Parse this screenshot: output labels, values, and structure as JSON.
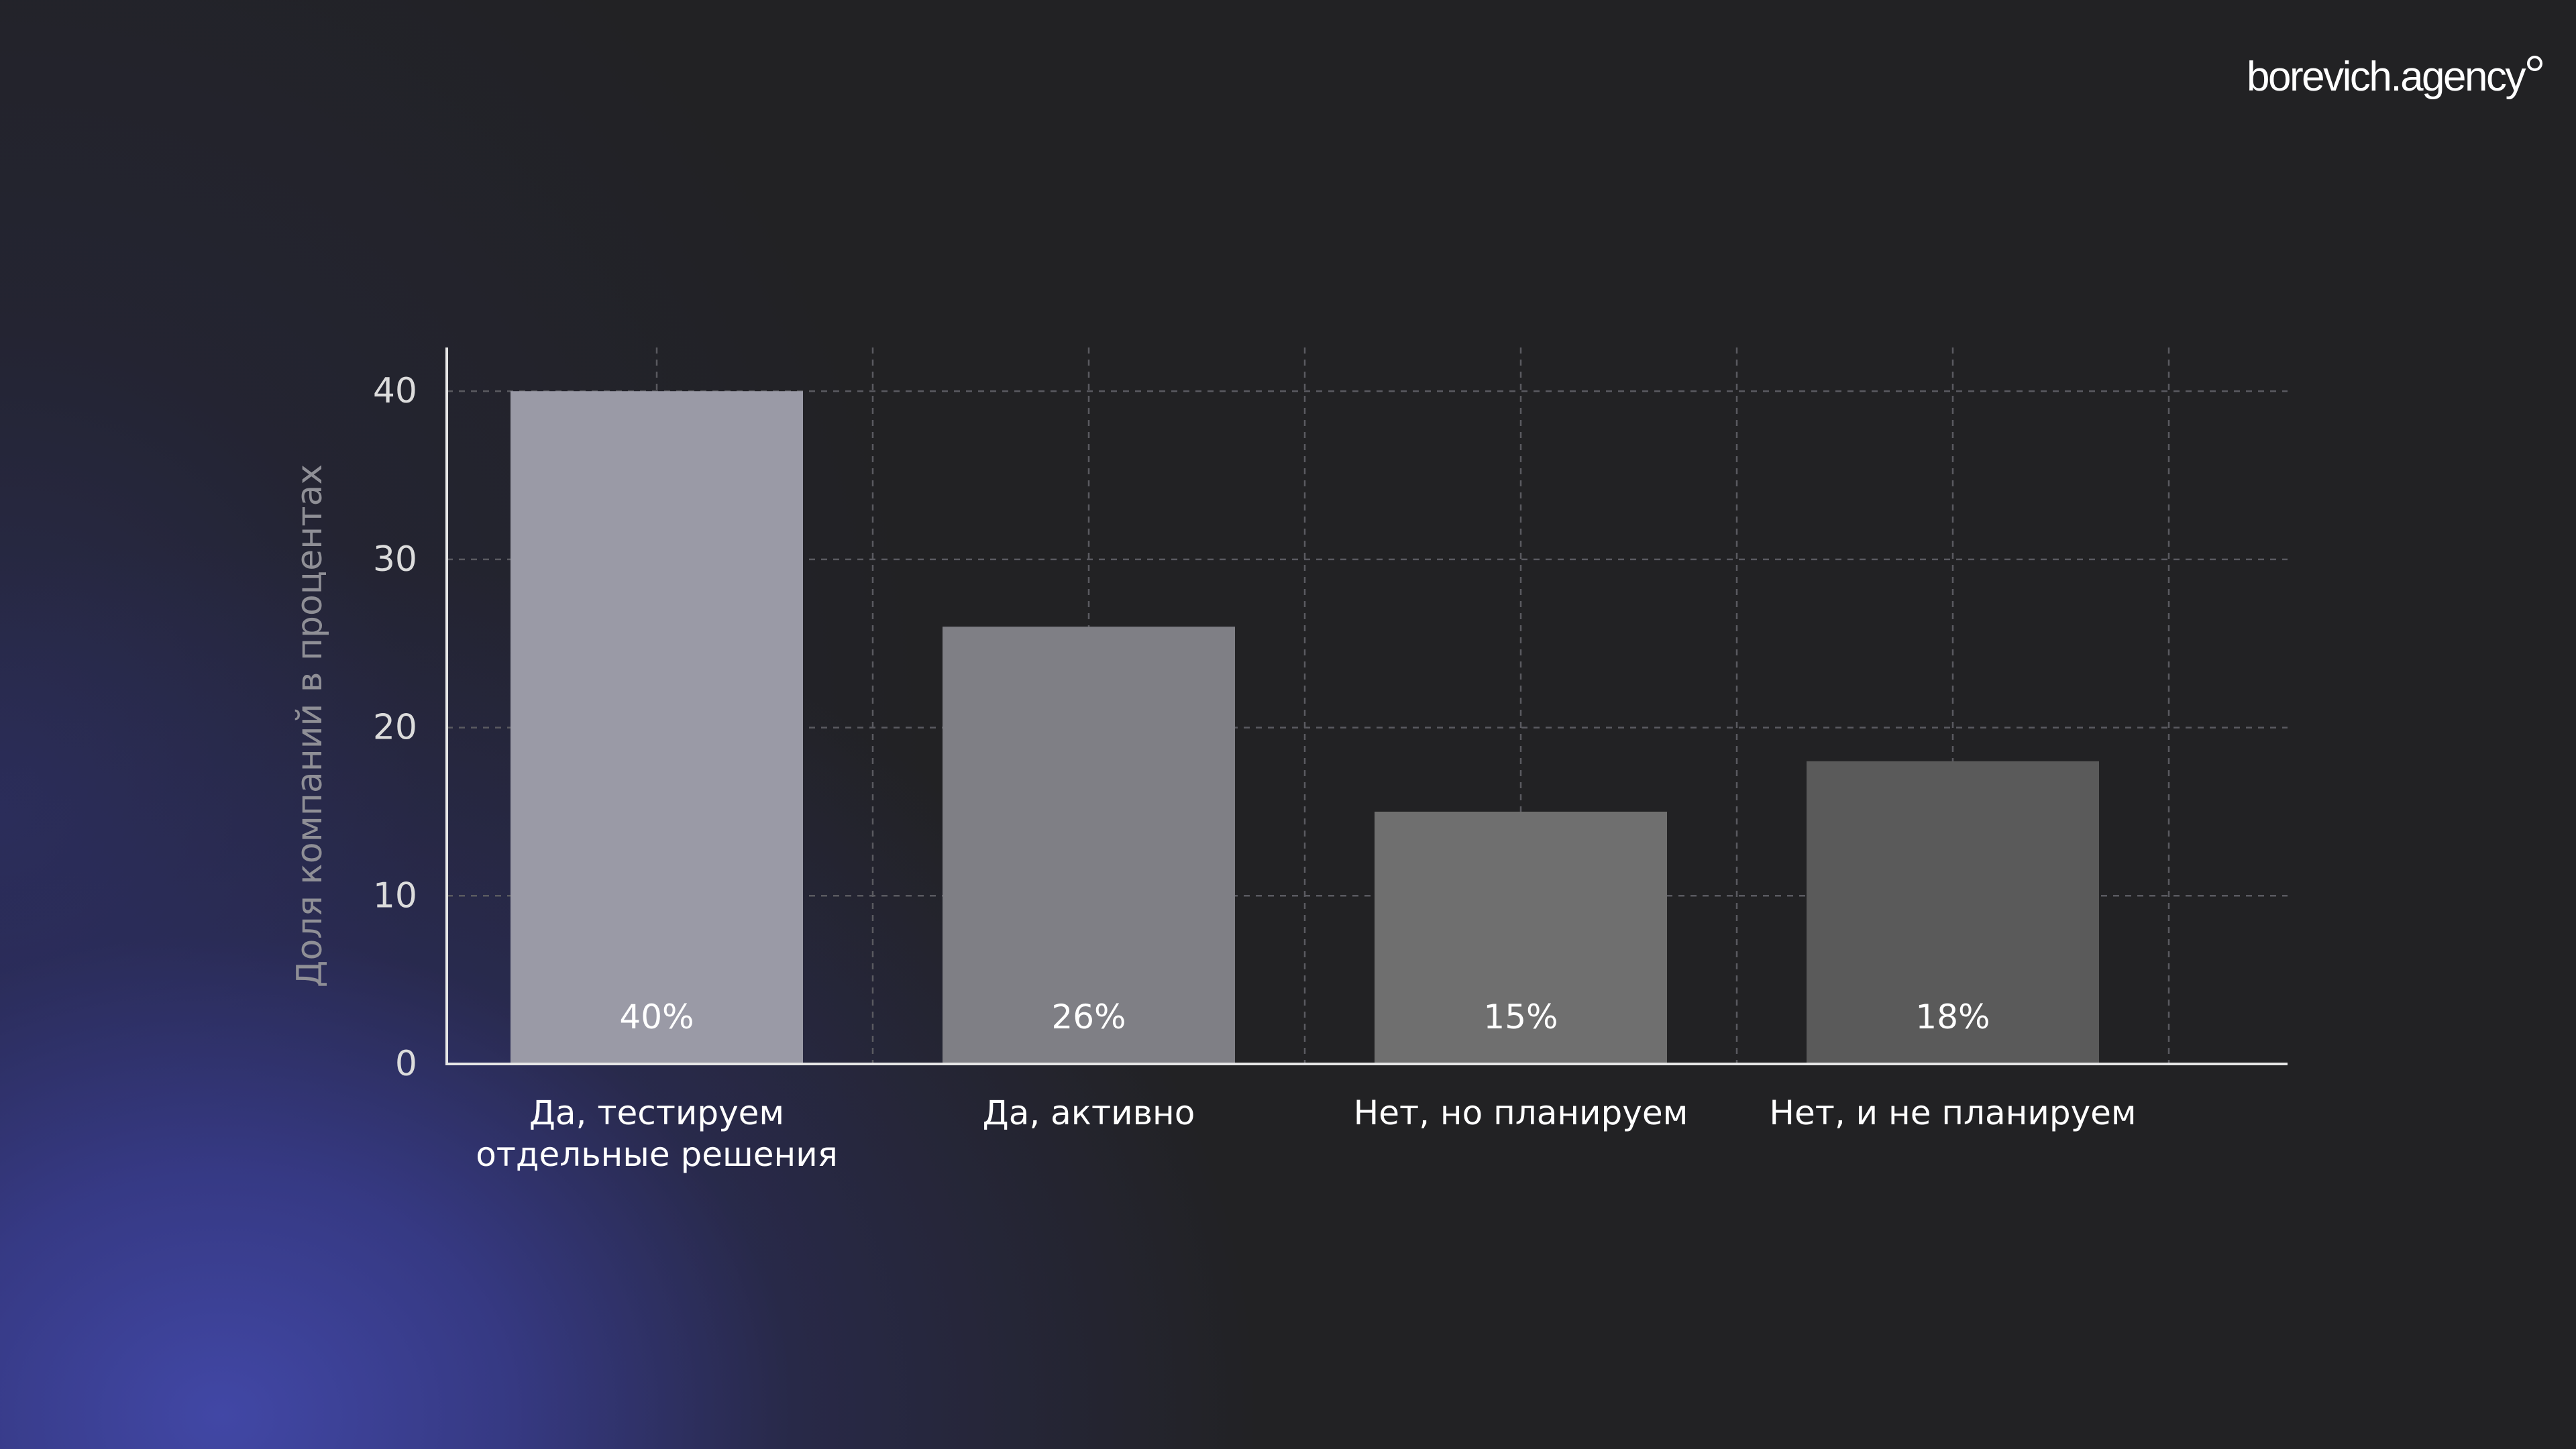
{
  "brand": {
    "logo_text": "borevich.agency"
  },
  "colors": {
    "background": "#222224",
    "gradient_accent": "#3f46a8",
    "axis": "#e6e6e6",
    "grid": "#5a5a60",
    "tick_text": "#dcdcdc",
    "ylabel_text": "#8f8f96",
    "category_text": "#ffffff",
    "data_label_text": "#ffffff",
    "bar_fills": [
      "#9a9aa6",
      "#7f7f85",
      "#6f6f6f",
      "#5a5a5a"
    ]
  },
  "chart_data": {
    "type": "bar",
    "title": "",
    "xlabel": "",
    "ylabel": "Доля компаний в процентах",
    "categories": [
      [
        "Да, тестируем",
        "отдельные решения"
      ],
      [
        "Да, активно"
      ],
      [
        "Нет, но планируем"
      ],
      [
        "Нет, и не планируем"
      ]
    ],
    "values": [
      40,
      26,
      15,
      18
    ],
    "data_labels": [
      "40%",
      "26%",
      "15%",
      "18%"
    ],
    "ylim": [
      0,
      42.6
    ],
    "yticks": [
      0,
      10,
      20,
      30,
      40
    ],
    "ytick_labels": [
      "0",
      "10",
      "20",
      "30",
      "40"
    ],
    "grid": true,
    "grid_style": "dashed",
    "legend": "none"
  }
}
